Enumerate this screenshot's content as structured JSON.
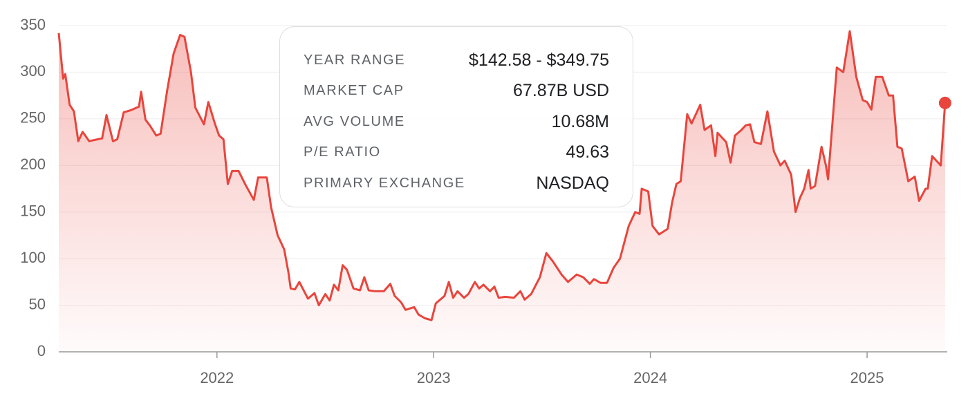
{
  "chart_data": {
    "type": "line",
    "color": "#e8453c",
    "x": [
      2021.27,
      2021.29,
      2021.3,
      2021.32,
      2021.34,
      2021.36,
      2021.38,
      2021.41,
      2021.45,
      2021.47,
      2021.49,
      2021.52,
      2021.54,
      2021.57,
      2021.6,
      2021.64,
      2021.65,
      2021.67,
      2021.69,
      2021.72,
      2021.74,
      2021.77,
      2021.8,
      2021.83,
      2021.85,
      2021.88,
      2021.9,
      2021.94,
      2021.96,
      2021.99,
      2022.01,
      2022.03,
      2022.05,
      2022.07,
      2022.1,
      2022.13,
      2022.17,
      2022.19,
      2022.23,
      2022.25,
      2022.28,
      2022.31,
      2022.33,
      2022.34,
      2022.36,
      2022.38,
      2022.42,
      2022.45,
      2022.47,
      2022.5,
      2022.52,
      2022.54,
      2022.56,
      2022.58,
      2022.6,
      2022.63,
      2022.66,
      2022.68,
      2022.7,
      2022.73,
      2022.77,
      2022.8,
      2022.82,
      2022.85,
      2022.87,
      2022.91,
      2022.93,
      2022.96,
      2022.99,
      2023.01,
      2023.05,
      2023.07,
      2023.09,
      2023.11,
      2023.14,
      2023.16,
      2023.19,
      2023.21,
      2023.23,
      2023.26,
      2023.28,
      2023.3,
      2023.33,
      2023.37,
      2023.4,
      2023.42,
      2023.45,
      2023.49,
      2023.52,
      2023.55,
      2023.59,
      2023.62,
      2023.66,
      2023.69,
      2023.72,
      2023.74,
      2023.77,
      2023.8,
      2023.83,
      2023.86,
      2023.9,
      2023.93,
      2023.95,
      2023.96,
      2023.99,
      2024.01,
      2024.04,
      2024.08,
      2024.1,
      2024.12,
      2024.14,
      2024.17,
      2024.19,
      2024.23,
      2024.25,
      2024.28,
      2024.3,
      2024.31,
      2024.35,
      2024.37,
      2024.39,
      2024.42,
      2024.44,
      2024.46,
      2024.48,
      2024.51,
      2024.54,
      2024.57,
      2024.6,
      2024.62,
      2024.65,
      2024.67,
      2024.69,
      2024.71,
      2024.73,
      2024.74,
      2024.76,
      2024.79,
      2024.81,
      2024.82,
      2024.86,
      2024.89,
      2024.92,
      2024.95,
      2024.98,
      2025.0,
      2025.02,
      2025.04,
      2025.07,
      2025.1,
      2025.12,
      2025.14,
      2025.16,
      2025.19,
      2025.22,
      2025.24,
      2025.27,
      2025.28,
      2025.3,
      2025.32,
      2025.34,
      2025.36
    ],
    "values": [
      342,
      293,
      298,
      265,
      258,
      226,
      236,
      226,
      228,
      229,
      254,
      226,
      228,
      257,
      259,
      263,
      279,
      249,
      243,
      232,
      234,
      280,
      320,
      340,
      338,
      300,
      262,
      244,
      268,
      245,
      232,
      228,
      180,
      194,
      194,
      180,
      163,
      187,
      187,
      155,
      125,
      110,
      85,
      68,
      67,
      75,
      57,
      63,
      50,
      62,
      55,
      72,
      66,
      93,
      88,
      68,
      66,
      80,
      66,
      65,
      65,
      73,
      60,
      53,
      45,
      48,
      40,
      36,
      34,
      52,
      60,
      75,
      58,
      65,
      58,
      62,
      75,
      68,
      72,
      65,
      70,
      58,
      59,
      58,
      65,
      56,
      62,
      80,
      106,
      97,
      83,
      75,
      83,
      80,
      73,
      78,
      74,
      74,
      90,
      100,
      135,
      150,
      148,
      175,
      172,
      135,
      126,
      132,
      160,
      180,
      183,
      255,
      245,
      265,
      238,
      243,
      210,
      235,
      225,
      203,
      232,
      238,
      243,
      244,
      225,
      223,
      258,
      215,
      200,
      205,
      190,
      150,
      165,
      175,
      195,
      175,
      178,
      220,
      200,
      185,
      305,
      300,
      344,
      295,
      270,
      268,
      260,
      295,
      295,
      275,
      275,
      220,
      218,
      183,
      188,
      162,
      175,
      175,
      210,
      205,
      200,
      267
    ],
    "xlim": [
      2021.27,
      2025.37
    ],
    "xticks": [
      2022,
      2023,
      2024,
      2025
    ],
    "ylim": [
      0,
      350
    ],
    "yticks": [
      0,
      50,
      100,
      150,
      200,
      250,
      300,
      350
    ],
    "grid": true
  },
  "stats": [
    {
      "label": "YEAR RANGE",
      "value": "$142.58 - $349.75"
    },
    {
      "label": "MARKET CAP",
      "value": "67.87B USD"
    },
    {
      "label": "AVG VOLUME",
      "value": "10.68M"
    },
    {
      "label": "P/E RATIO",
      "value": "49.63"
    },
    {
      "label": "PRIMARY EXCHANGE",
      "value": "NASDAQ"
    }
  ]
}
